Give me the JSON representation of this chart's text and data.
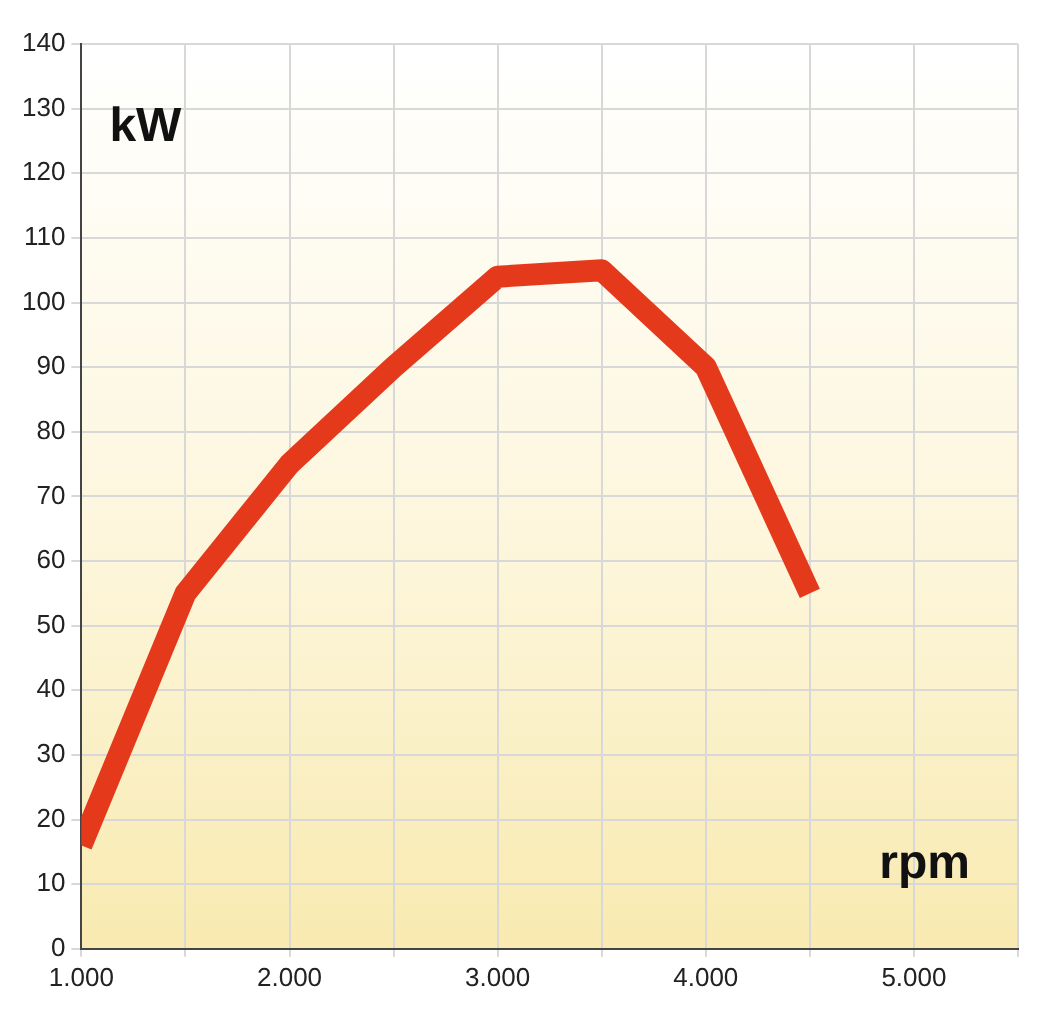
{
  "chart_data": {
    "type": "line",
    "xlabel": "rpm",
    "ylabel": "kW",
    "x": [
      1000,
      1500,
      2000,
      2500,
      3000,
      3500,
      4000,
      4500
    ],
    "series": [
      {
        "color": "#e5391c",
        "values": [
          16,
          55,
          75,
          90,
          104,
          105,
          90,
          55
        ]
      }
    ],
    "xlim": [
      1000,
      5500
    ],
    "xticks": [
      {
        "value": 1000,
        "label": "1.000"
      },
      {
        "value": 1500,
        "label": null
      },
      {
        "value": 2000,
        "label": "2.000"
      },
      {
        "value": 2500,
        "label": null
      },
      {
        "value": 3000,
        "label": "3.000"
      },
      {
        "value": 3500,
        "label": null
      },
      {
        "value": 4000,
        "label": "4.000"
      },
      {
        "value": 4500,
        "label": null
      },
      {
        "value": 5000,
        "label": "5.000"
      },
      {
        "value": 5500,
        "label": null
      }
    ],
    "ylim": [
      0,
      140
    ],
    "yticks": [
      0,
      10,
      20,
      30,
      40,
      50,
      60,
      70,
      80,
      90,
      100,
      110,
      120,
      130,
      140
    ],
    "grid": true,
    "marker": "none",
    "line_style": "solid",
    "legend": false
  }
}
